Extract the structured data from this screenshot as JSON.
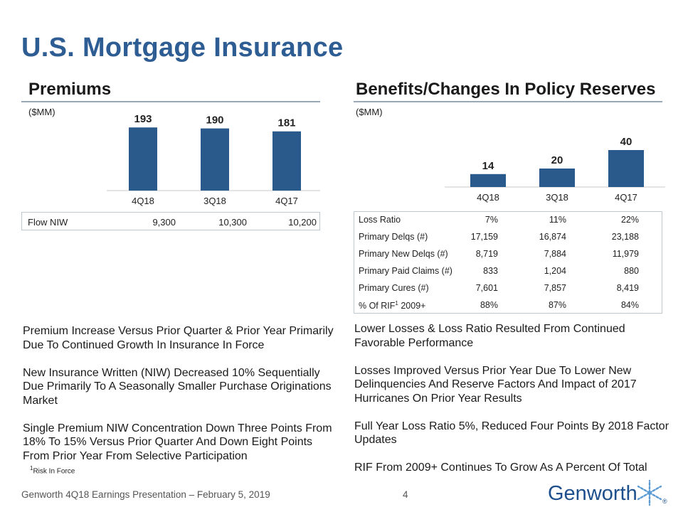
{
  "title": "U.S. Mortgage Insurance",
  "premiums": {
    "heading": "Premiums",
    "unit": "($MM)",
    "chart_data": {
      "type": "bar",
      "title": "Premiums",
      "ylabel": "($MM)",
      "categories": [
        "4Q18",
        "3Q18",
        "4Q17"
      ],
      "values": [
        193,
        190,
        181
      ],
      "ylim": [
        0,
        200
      ],
      "color": "#2a5a8c"
    },
    "flow_label": "Flow NIW",
    "flow_values": [
      "9,300",
      "10,300",
      "10,200"
    ]
  },
  "benefits": {
    "heading": "Benefits/Changes In Policy Reserves",
    "unit": "($MM)",
    "chart_data": {
      "type": "bar",
      "title": "Benefits/Changes In Policy Reserves",
      "ylabel": "($MM)",
      "categories": [
        "4Q18",
        "3Q18",
        "4Q17"
      ],
      "values": [
        14,
        20,
        40
      ],
      "ylim": [
        0,
        100
      ],
      "color": "#2a5a8c"
    },
    "stats": [
      {
        "label": "Loss Ratio",
        "values": [
          "7%",
          "11%",
          "22%"
        ]
      },
      {
        "label": "Primary Delqs (#)",
        "values": [
          "17,159",
          "16,874",
          "23,188"
        ]
      },
      {
        "label": "Primary New Delqs (#)",
        "values": [
          "8,719",
          "7,884",
          "11,979"
        ]
      },
      {
        "label": "Primary Paid Claims (#)",
        "values": [
          "833",
          "1,204",
          "880"
        ]
      },
      {
        "label": "Primary Cures (#)",
        "values": [
          "7,601",
          "7,857",
          "8,419"
        ]
      }
    ],
    "rif_row": {
      "label_prefix": "% Of RIF",
      "label_sup": "1",
      "label_suffix": " 2009+",
      "values": [
        "88%",
        "87%",
        "84%"
      ]
    }
  },
  "left_bullets": [
    "Premium Increase Versus Prior Quarter & Prior Year Primarily Due To Continued Growth In Insurance In Force",
    "New Insurance Written (NIW) Decreased 10% Sequentially Due Primarily To A Seasonally Smaller Purchase Originations Market",
    "Single Premium NIW Concentration Down Three Points From 18% To 15% Versus Prior Quarter And Down Eight Points From Prior Year From Selective Participation"
  ],
  "right_bullets": [
    "Lower Losses & Loss Ratio Resulted From Continued Favorable Performance",
    "Losses Improved Versus Prior Year Due To Lower New Delinquencies And Reserve Factors And Impact of 2017 Hurricanes On Prior Year Results",
    "Full Year Loss Ratio 5%, Reduced Four Points By 2018 Factor Updates",
    "RIF From 2009+ Continues To Grow As A Percent Of Total"
  ],
  "footnote": {
    "sup": "1",
    "text": "Risk In Force"
  },
  "footer": "Genworth 4Q18 Earnings Presentation – February 5, 2019",
  "page_number": "4",
  "logo_text": "Genworth",
  "registered_mark": "®"
}
